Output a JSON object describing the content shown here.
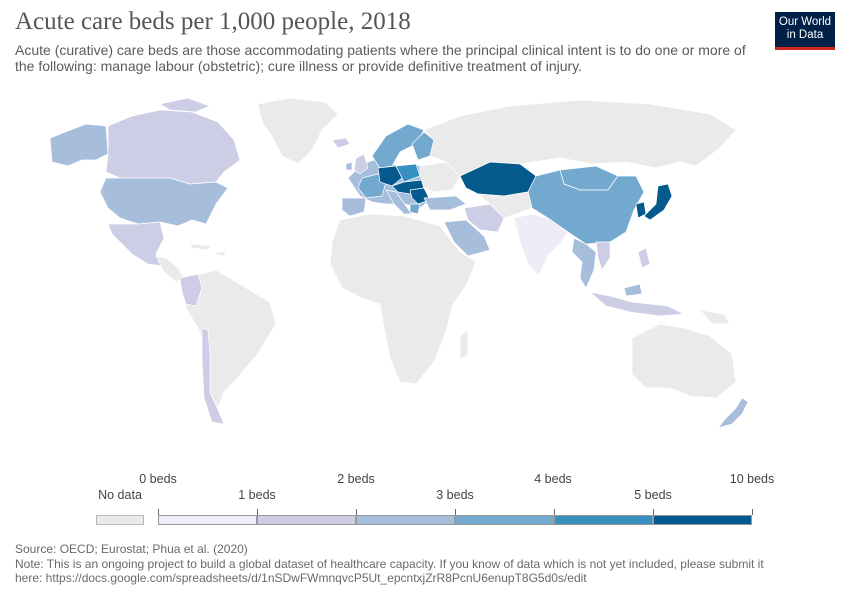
{
  "header": {
    "title": "Acute care beds per 1,000 people, 2018",
    "subtitle": "Acute (curative) care beds are those accommodating patients where the principal clinical intent is to do one or more of the following: manage labour (obstetric); cure illness or provide definitive treatment of injury.",
    "logo_line1": "Our World",
    "logo_line2": "in Data"
  },
  "colors": {
    "no_data": "#eaeaea",
    "border": "#ffffff",
    "bin_0_1": "#eeecf6",
    "bin_1_2": "#cdcde6",
    "bin_2_3": "#a6bddb",
    "bin_3_4": "#74a9cf",
    "bin_4_5": "#3690c0",
    "bin_5_10": "#045a8d",
    "brand_navy": "#002147",
    "brand_red": "#ce261e"
  },
  "legend": {
    "no_data_label": "No data",
    "upper_labels": [
      "0 beds",
      "2 beds",
      "4 beds",
      "10 beds"
    ],
    "lower_labels": [
      "1 beds",
      "3 beds",
      "5 beds"
    ],
    "bins": [
      {
        "from": 0,
        "to": 1,
        "color": "#eeecf6"
      },
      {
        "from": 1,
        "to": 2,
        "color": "#cdcde6"
      },
      {
        "from": 2,
        "to": 3,
        "color": "#a6bddb"
      },
      {
        "from": 3,
        "to": 4,
        "color": "#74a9cf"
      },
      {
        "from": 4,
        "to": 5,
        "color": "#3690c0"
      },
      {
        "from": 5,
        "to": 10,
        "color": "#045a8d"
      }
    ]
  },
  "footer": {
    "source": "Source: OECD; Eurostat; Phua et al. (2020)",
    "note_line1": "Note: This is an ongoing project to build a global dataset of healthcare capacity. If you know of data which is not yet included, please submit it",
    "note_line2": "here: https://docs.google.com/spreadsheets/d/1nSDwFWmnqvcP5Ut_epcntxjZrR8PcnU6enupT8G5d0s/edit"
  }
}
